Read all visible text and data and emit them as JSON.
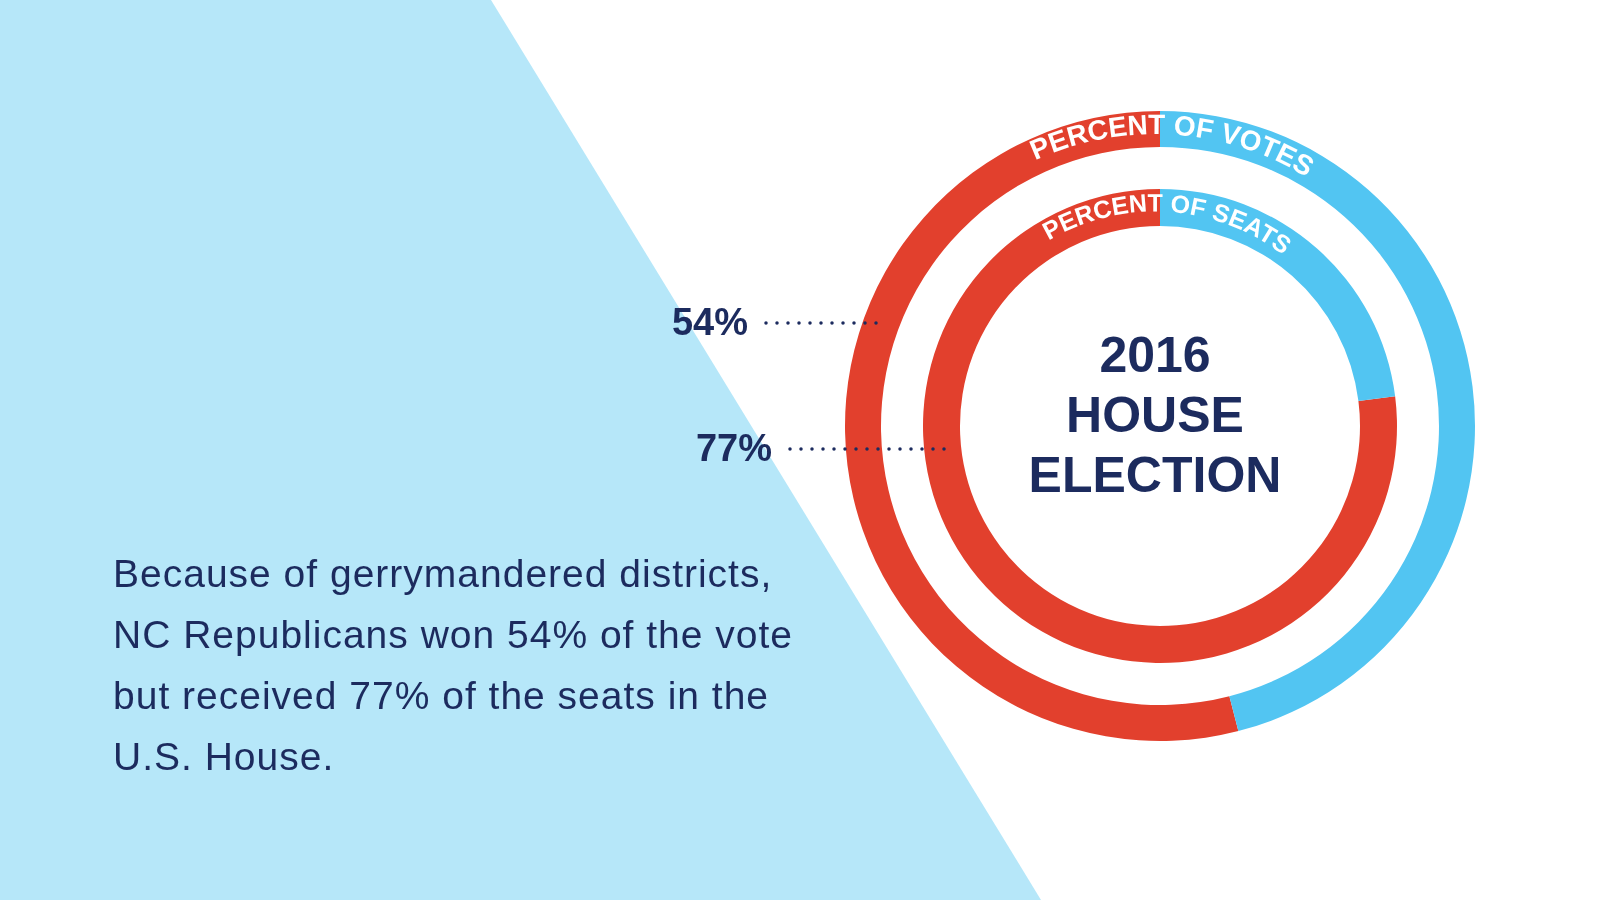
{
  "chart_data": {
    "type": "donut",
    "title": "2016 HOUSE ELECTION",
    "categories": [
      null,
      null
    ],
    "legend": false,
    "series": [
      {
        "name": "PERCENT OF VOTES",
        "values": [
          54,
          46
        ],
        "colors": [
          "#e2402d",
          "#52c5f2"
        ],
        "value_labels": [
          "54%",
          null
        ]
      },
      {
        "name": "PERCENT OF SEATS",
        "values": [
          77,
          23
        ],
        "colors": [
          "#e2402d",
          "#52c5f2"
        ],
        "value_labels": [
          "77%",
          null
        ]
      }
    ],
    "annotations": [
      "Because of gerrymandered districts, NC Republicans won 54% of the vote but received 77% of the seats in the U.S. House."
    ]
  }
}
